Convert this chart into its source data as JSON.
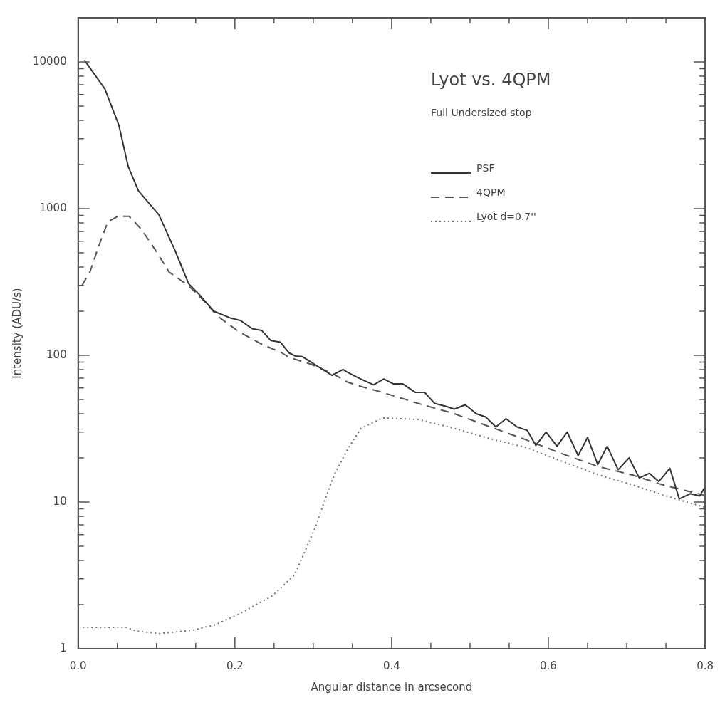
{
  "chart_data": {
    "type": "line",
    "title": "Lyot vs. 4QPM",
    "subtitle": "Full Undersized stop",
    "xlabel": "Angular distance in arcsecond",
    "ylabel": "Intensity (ADU/s)",
    "log": "y",
    "legend": "top right",
    "xlim": [
      0,
      0.8
    ],
    "ylim": [
      1,
      20000
    ],
    "xticks": [
      {
        "value": 0,
        "label": "0.0"
      },
      {
        "value": 0.05,
        "label": null
      },
      {
        "value": 0.1,
        "label": null
      },
      {
        "value": 0.15,
        "label": null
      },
      0.2,
      {
        "value": 0.25,
        "label": null
      },
      {
        "value": 0.3,
        "label": null
      },
      {
        "value": 0.35,
        "label": null
      },
      0.4,
      {
        "value": 0.45,
        "label": null
      },
      {
        "value": 0.5,
        "label": null
      },
      {
        "value": 0.55,
        "label": null
      },
      0.6,
      {
        "value": 0.65,
        "label": null
      },
      {
        "value": 0.7,
        "label": null
      },
      {
        "value": 0.75,
        "label": null
      },
      0.8
    ],
    "yticks": [
      1,
      {
        "value": 2,
        "label": null
      },
      {
        "value": 3,
        "label": null
      },
      {
        "value": 4,
        "label": null
      },
      {
        "value": 5,
        "label": null
      },
      {
        "value": 6,
        "label": null
      },
      {
        "value": 7,
        "label": null
      },
      {
        "value": 8,
        "label": null
      },
      {
        "value": 9,
        "label": null
      },
      10,
      {
        "value": 20,
        "label": null
      },
      {
        "value": 30,
        "label": null
      },
      {
        "value": 40,
        "label": null
      },
      {
        "value": 50,
        "label": null
      },
      {
        "value": 60,
        "label": null
      },
      {
        "value": 70,
        "label": null
      },
      {
        "value": 80,
        "label": null
      },
      {
        "value": 90,
        "label": null
      },
      100,
      {
        "value": 200,
        "label": null
      },
      {
        "value": 300,
        "label": null
      },
      {
        "value": 400,
        "label": null
      },
      {
        "value": 500,
        "label": null
      },
      {
        "value": 600,
        "label": null
      },
      {
        "value": 700,
        "label": null
      },
      {
        "value": 800,
        "label": null
      },
      {
        "value": 900,
        "label": null
      },
      1000,
      {
        "value": 2000,
        "label": null
      },
      {
        "value": 3000,
        "label": null
      },
      {
        "value": 4000,
        "label": null
      },
      {
        "value": 5000,
        "label": null
      },
      {
        "value": 6000,
        "label": null
      },
      {
        "value": 7000,
        "label": null
      },
      {
        "value": 8000,
        "label": null
      },
      {
        "value": 9000,
        "label": null
      },
      10000
    ],
    "series": [
      {
        "name": "PSF",
        "color": "#333333",
        "line_style": "solid",
        "x": [
          0.008,
          0.034,
          0.052,
          0.064,
          0.077,
          0.103,
          0.123,
          0.141,
          0.154,
          0.173,
          0.194,
          0.207,
          0.222,
          0.234,
          0.246,
          0.258,
          0.269,
          0.277,
          0.286,
          0.297,
          0.306,
          0.324,
          0.338,
          0.343,
          0.358,
          0.377,
          0.39,
          0.402,
          0.414,
          0.43,
          0.442,
          0.455,
          0.469,
          0.48,
          0.494,
          0.508,
          0.52,
          0.533,
          0.546,
          0.56,
          0.573,
          0.584,
          0.597,
          0.611,
          0.624,
          0.638,
          0.65,
          0.663,
          0.675,
          0.689,
          0.703,
          0.716,
          0.729,
          0.741,
          0.755,
          0.767,
          0.781,
          0.793,
          0.8
        ],
        "values": [
          10300,
          6560,
          3700,
          1930,
          1320,
          908,
          528,
          308,
          262,
          200,
          180,
          173,
          152,
          148,
          126,
          123,
          104,
          99,
          98,
          90,
          84,
          73,
          80,
          77,
          70,
          63,
          69,
          64,
          64,
          56,
          56,
          47,
          45,
          43,
          46,
          40,
          38,
          32.5,
          37,
          32.5,
          30.8,
          24.3,
          30,
          24,
          30,
          20.7,
          27.6,
          18,
          24,
          16.6,
          20,
          14.6,
          15.7,
          13.8,
          17,
          10.5,
          11.4,
          11,
          12.7
        ]
      },
      {
        "name": "4QPM",
        "color": "#555555",
        "line_style": "dashed",
        "x": [
          0.005,
          0.015,
          0.027,
          0.038,
          0.051,
          0.065,
          0.08,
          0.098,
          0.116,
          0.141,
          0.159,
          0.178,
          0.205,
          0.233,
          0.26,
          0.269,
          0.297,
          0.324,
          0.343,
          0.358,
          0.388,
          0.434,
          0.48,
          0.526,
          0.572,
          0.618,
          0.663,
          0.709,
          0.746,
          0.78,
          0.8
        ],
        "values": [
          300,
          370,
          570,
          815,
          888,
          888,
          731,
          528,
          370,
          298,
          240,
          185,
          145,
          120,
          104,
          97,
          87,
          75.5,
          66,
          62,
          56,
          47,
          40,
          32.5,
          26.5,
          21.3,
          17.5,
          15.2,
          13.1,
          11.8,
          11.1
        ]
      },
      {
        "name": "Lyot d=0.7''",
        "color": "#777777",
        "line_style": "dotted",
        "x": [
          0.006,
          0.061,
          0.074,
          0.104,
          0.147,
          0.175,
          0.205,
          0.248,
          0.276,
          0.29,
          0.303,
          0.315,
          0.327,
          0.343,
          0.361,
          0.388,
          0.434,
          0.48,
          0.526,
          0.572,
          0.618,
          0.663,
          0.709,
          0.755,
          0.8
        ],
        "values": [
          1.4,
          1.4,
          1.32,
          1.27,
          1.34,
          1.46,
          1.72,
          2.3,
          3.18,
          4.7,
          6.8,
          10.4,
          15.4,
          22.5,
          31.8,
          37.4,
          36.6,
          31.8,
          27,
          23.5,
          18.9,
          15.4,
          13,
          10.8,
          9.2
        ]
      }
    ]
  }
}
